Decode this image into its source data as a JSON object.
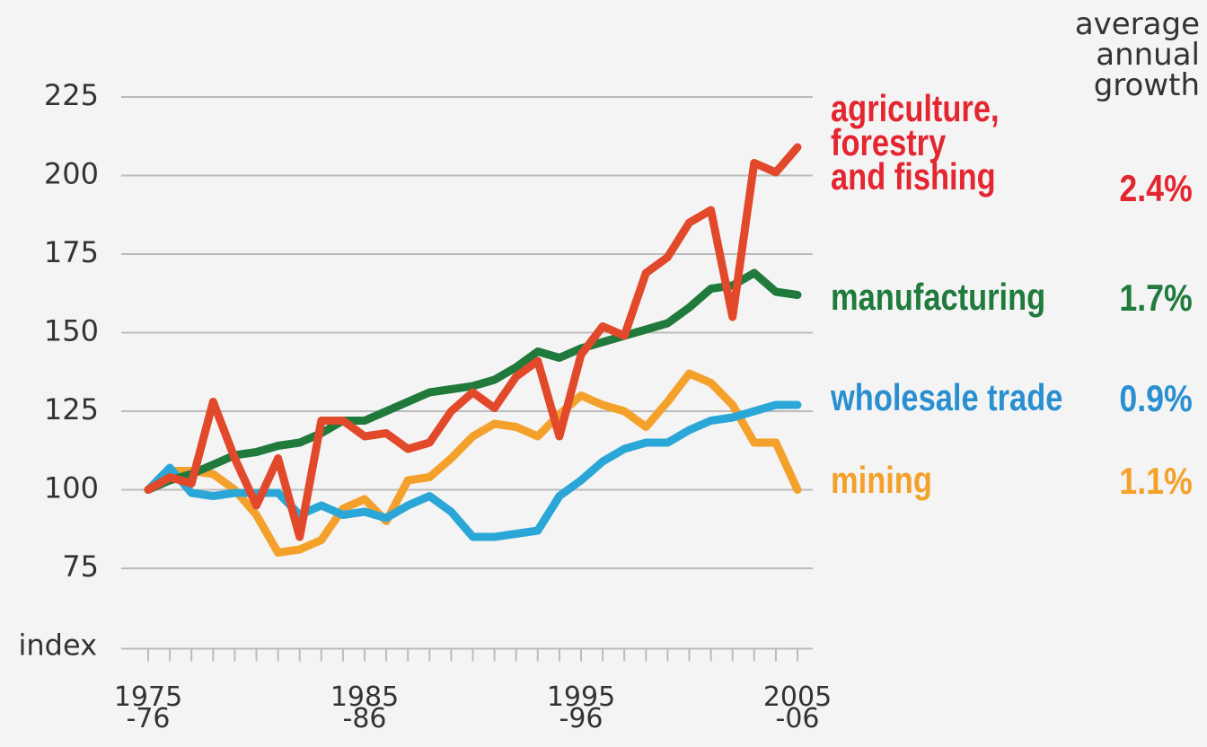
{
  "chart_data": {
    "type": "line",
    "ylabel": "index",
    "growth_header": "average\nannual\ngrowth",
    "categories": [
      "1975\n-76",
      null,
      null,
      null,
      null,
      null,
      null,
      null,
      null,
      null,
      "1985\n-86",
      null,
      null,
      null,
      null,
      null,
      null,
      null,
      null,
      null,
      "1995\n-96",
      null,
      null,
      null,
      null,
      null,
      null,
      null,
      null,
      null,
      "2005\n-06"
    ],
    "ylim": [
      50,
      225
    ],
    "yticks": [
      75,
      100,
      125,
      150,
      175,
      200,
      225
    ],
    "grid": true,
    "series": [
      {
        "name": "agriculture,\nforestry\nand fishing",
        "color": "#e2492b",
        "growth": "2.4%",
        "label_color": "#e3262f",
        "values": [
          100,
          104,
          102,
          128,
          110,
          95,
          110,
          85,
          122,
          122,
          117,
          118,
          113,
          115,
          125,
          131,
          126,
          136,
          141,
          117,
          143,
          152,
          149,
          169,
          174,
          185,
          189,
          155,
          204,
          201,
          209
        ]
      },
      {
        "name": "manufacturing",
        "color": "#1f7a3c",
        "growth": "1.7%",
        "label_color": "#1f7a3c",
        "values": [
          100,
          103,
          105,
          108,
          111,
          112,
          114,
          115,
          118,
          122,
          122,
          125,
          128,
          131,
          132,
          133,
          135,
          139,
          144,
          142,
          145,
          147,
          149,
          151,
          153,
          158,
          164,
          165,
          169,
          163,
          162
        ]
      },
      {
        "name": "wholesale trade",
        "color": "#2aa7d6",
        "growth": "0.9%",
        "label_color": "#2a8fd0",
        "values": [
          100,
          107,
          99,
          98,
          99,
          99,
          99,
          92,
          95,
          92,
          93,
          91,
          95,
          98,
          93,
          85,
          85,
          86,
          87,
          98,
          103,
          109,
          113,
          115,
          115,
          119,
          122,
          123,
          125,
          127,
          127
        ]
      },
      {
        "name": "mining",
        "color": "#f4a12c",
        "growth": "1.1%",
        "label_color": "#f4a12c",
        "values": [
          100,
          106,
          106,
          105,
          100,
          92,
          80,
          81,
          84,
          94,
          97,
          90,
          103,
          104,
          110,
          117,
          121,
          120,
          117,
          124,
          130,
          127,
          125,
          120,
          128,
          137,
          134,
          127,
          115,
          115,
          100
        ]
      }
    ]
  }
}
